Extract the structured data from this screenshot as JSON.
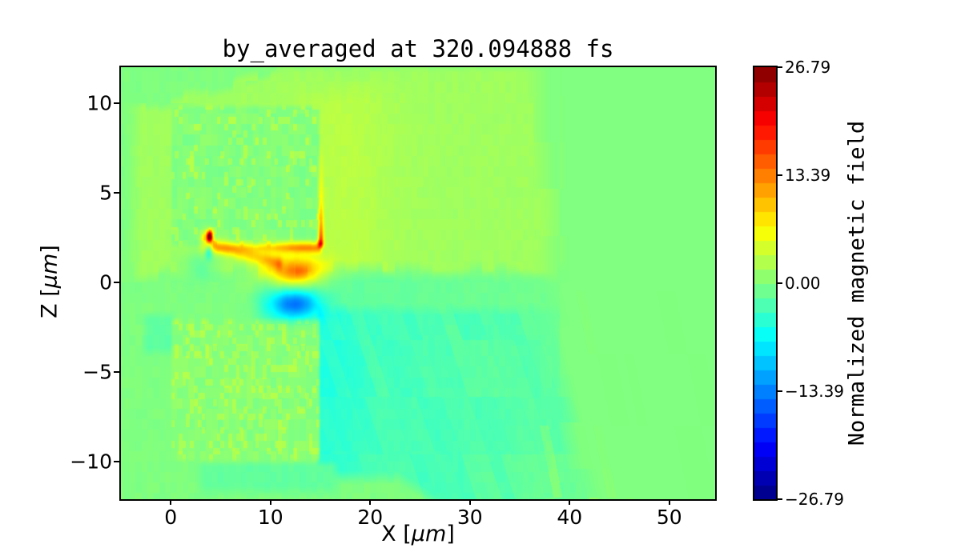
{
  "chart_data": {
    "type": "heatmap",
    "title": "by_averaged at 320.094888 fs",
    "xlabel": "X [μm]",
    "xlabel_prefix": "X [",
    "xlabel_unit": "μm",
    "xlabel_suffix": "]",
    "ylabel": "Z [μm]",
    "ylabel_prefix": "Z [",
    "ylabel_unit": "μm",
    "ylabel_suffix": "]",
    "xlim": [
      -5,
      54.6
    ],
    "ylim": [
      -12.1,
      12.0
    ],
    "xticks": [
      0,
      10,
      20,
      30,
      40,
      50
    ],
    "xtick_labels": [
      "0",
      "10",
      "20",
      "30",
      "40",
      "50"
    ],
    "yticks": [
      10,
      5,
      0,
      -5,
      -10
    ],
    "ytick_labels": [
      "10",
      "5",
      "0",
      "−5",
      "−10"
    ],
    "grid": false,
    "colormap": "jet",
    "colorbar": {
      "label": "Normalized magnetic field",
      "vmin": -26.79,
      "vmax": 26.79,
      "n_levels": 30,
      "tick_values": [
        26.79,
        13.39,
        0,
        -13.39,
        -26.79
      ],
      "tick_labels": [
        "26.79",
        "13.39",
        "0.00",
        "−13.39",
        "−26.79"
      ]
    },
    "background_value": 0,
    "features": [
      {
        "name": "upper-target-block",
        "type": "rect",
        "x": [
          0.1,
          14.92
        ],
        "z": [
          2.02,
          9.82
        ],
        "value": 0.2,
        "desc": "speckled pale-green square target block above axis"
      },
      {
        "name": "lower-target-block",
        "type": "rect",
        "x": [
          0.1,
          14.92
        ],
        "z": [
          -9.95,
          -2.08
        ],
        "value": 0.5,
        "desc": "speckled yellow-green square target block below axis"
      },
      {
        "name": "positive-halo",
        "type": "region",
        "value": 1.7,
        "x_max": 38,
        "desc": "yellow-green field region surrounding and right of upper block, z>0.5, out to x≈38"
      },
      {
        "name": "negative-wake",
        "type": "region",
        "value": -1.9,
        "z": [
          -2.25,
          0.35
        ],
        "x": [
          9,
          38
        ],
        "desc": "teal-cyan wake band just below z=0 extending to x≈38"
      },
      {
        "name": "right-cyan-streaks",
        "type": "region",
        "value": -3.5,
        "x": [
          14.7,
          38
        ],
        "z": [
          -10.7,
          -1.5
        ],
        "desc": "cyan region with diagonal streaks right of lower block, fading toward x≈40"
      },
      {
        "name": "left-sliver",
        "type": "region",
        "value": -1.8,
        "x": [
          -2.6,
          0.4
        ],
        "z": [
          -3.9,
          -1.8
        ]
      },
      {
        "name": "below-block-band",
        "type": "region",
        "value": -1.6,
        "x": [
          3,
          16.5
        ],
        "z": [
          -11.7,
          -10.1
        ]
      },
      {
        "name": "orange-lobe",
        "type": "gaussian",
        "center": [
          12.4,
          0.55
        ],
        "sigma": [
          2.1,
          0.62
        ],
        "amplitude": 11,
        "desc": "strong positive (orange) field lobe at channel entrance"
      },
      {
        "name": "core-orange",
        "type": "gaussian",
        "center": [
          12.6,
          0.5
        ],
        "sigma": [
          1.1,
          0.35
        ],
        "amplitude": 2.5
      },
      {
        "name": "blue-lobe",
        "type": "gaussian",
        "center": [
          12.4,
          -1.2
        ],
        "sigma": [
          1.75,
          0.58
        ],
        "amplitude": -12.5,
        "desc": "strong negative (blue) field lobe mirrored below axis"
      },
      {
        "name": "hotspot",
        "type": "gaussian",
        "center": [
          3.9,
          2.55
        ],
        "sigma": [
          0.22,
          0.22
        ],
        "amplitude": 25,
        "desc": "small dark-red peak near x≈4, z≈2.5 (≈+26, colormap max)"
      },
      {
        "name": "hotspot-ring",
        "type": "gaussian",
        "center": [
          3.55,
          2.25
        ],
        "sigma": [
          0.45,
          0.45
        ],
        "amplitude": 6.5
      },
      {
        "name": "cold-dot",
        "type": "gaussian",
        "center": [
          3.8,
          1.7
        ],
        "sigma": [
          0.28,
          0.28
        ],
        "amplitude": -7
      },
      {
        "name": "cold-patch",
        "type": "gaussian",
        "center": [
          3.0,
          1.0
        ],
        "sigma": [
          1.3,
          0.55
        ],
        "amplitude": -3
      },
      {
        "name": "edge-line-bottom",
        "type": "line",
        "from": [
          4.3,
          1.95
        ],
        "to": [
          15.1,
          1.95
        ],
        "amplitude": 10,
        "desc": "orange line along bottom edge of upper block"
      },
      {
        "name": "edge-line-right",
        "type": "line",
        "from": [
          15.05,
          2.0
        ],
        "to": [
          15.05,
          7.5
        ],
        "amplitude": 16,
        "desc": "red-orange line up the right edge of upper block, fading upward"
      },
      {
        "name": "diagonal-jet",
        "type": "line",
        "from": [
          4.4,
          2.05
        ],
        "to": [
          10.8,
          1.1
        ],
        "amplitude": 6.5,
        "desc": "yellow streak from hotspot toward orange lobe"
      }
    ]
  }
}
